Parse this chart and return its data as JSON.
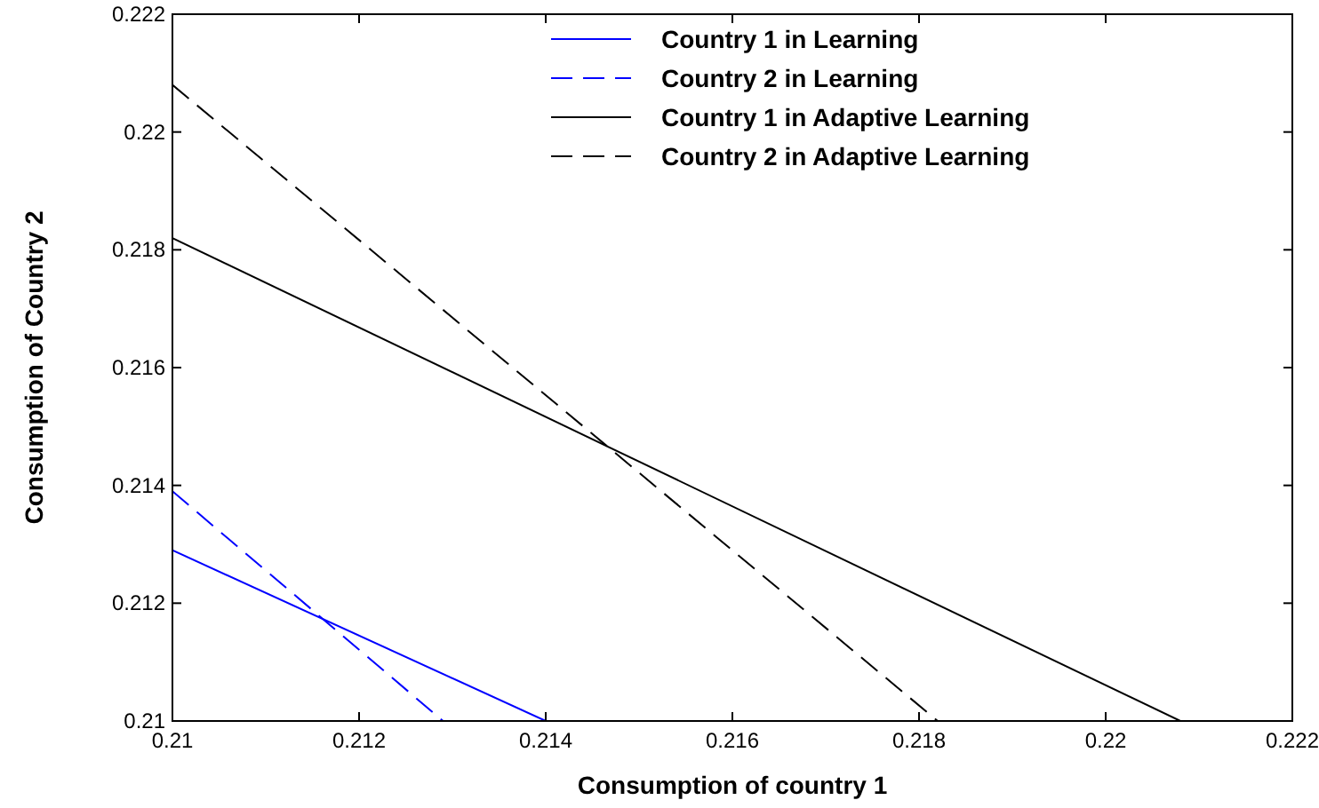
{
  "chart_data": {
    "type": "line",
    "xlabel": "Consumption of country 1",
    "ylabel": "Consumption of Country 2",
    "xlim": [
      0.21,
      0.222
    ],
    "xticks": [
      0.21,
      0.212,
      0.214,
      0.216,
      0.218,
      0.22,
      0.222
    ],
    "ylim": [
      0.21,
      0.222
    ],
    "yticks": [
      0.21,
      0.212,
      0.214,
      0.216,
      0.218,
      0.22,
      0.222
    ],
    "legend": "top right",
    "grid": false,
    "marker": "none",
    "series": [
      {
        "name": "Country 1 in Learning",
        "color": "#0000ff",
        "line_style": "solid",
        "x": [
          0.21,
          0.214
        ],
        "values": [
          0.2129,
          0.21
        ]
      },
      {
        "name": "Country 2 in Learning",
        "color": "#0000ff",
        "line_style": "dashed",
        "x": [
          0.21,
          0.2129
        ],
        "values": [
          0.2139,
          0.21
        ]
      },
      {
        "name": "Country 1 in Adaptive Learning",
        "color": "#000000",
        "line_style": "solid",
        "x": [
          0.21,
          0.2208
        ],
        "values": [
          0.2182,
          0.21
        ]
      },
      {
        "name": "Country 2 in Adaptive Learning",
        "color": "#000000",
        "line_style": "dashed",
        "x": [
          0.21,
          0.2182
        ],
        "values": [
          0.2208,
          0.21
        ]
      }
    ]
  }
}
